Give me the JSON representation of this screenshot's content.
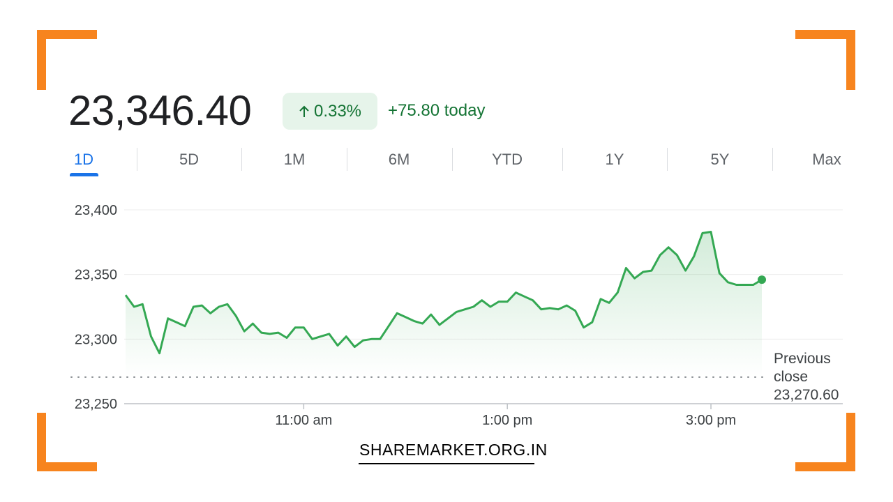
{
  "header": {
    "price": "23,346.40",
    "change_percent": "0.33%",
    "change_today": "+75.80 today"
  },
  "tabs": [
    {
      "label": "1D",
      "active": true
    },
    {
      "label": "5D",
      "active": false
    },
    {
      "label": "1M",
      "active": false
    },
    {
      "label": "6M",
      "active": false
    },
    {
      "label": "YTD",
      "active": false
    },
    {
      "label": "1Y",
      "active": false
    },
    {
      "label": "5Y",
      "active": false
    },
    {
      "label": "Max",
      "active": false
    }
  ],
  "previous_close": {
    "line1": "Previous",
    "line2": "close",
    "value": "23,270.60"
  },
  "brand": "SHAREMARKET.ORG.IN",
  "colors": {
    "accent": "#1a73e8",
    "positive": "#137333",
    "line": "#34a853",
    "corner": "#f7841e"
  },
  "chart_data": {
    "type": "line",
    "title": "",
    "xlabel": "",
    "ylabel": "",
    "ylim": [
      23250,
      23400
    ],
    "y_ticks": [
      23400,
      23350,
      23300,
      23250
    ],
    "y_tick_labels": [
      "23,400",
      "23,350",
      "23,300",
      "23,250"
    ],
    "x_ticks": [
      120,
      240,
      360
    ],
    "x_tick_labels": [
      "11:00 am",
      "1:00 pm",
      "3:00 pm"
    ],
    "x_range": [
      15,
      390
    ],
    "previous_close": 23270.6,
    "grid": true,
    "series": [
      {
        "values": [
          [
            15,
            23334
          ],
          [
            20,
            23325
          ],
          [
            25,
            23327
          ],
          [
            30,
            23302
          ],
          [
            35,
            23289
          ],
          [
            40,
            23316
          ],
          [
            45,
            23313
          ],
          [
            50,
            23310
          ],
          [
            55,
            23325
          ],
          [
            60,
            23326
          ],
          [
            65,
            23320
          ],
          [
            70,
            23325
          ],
          [
            75,
            23327
          ],
          [
            80,
            23318
          ],
          [
            85,
            23306
          ],
          [
            90,
            23312
          ],
          [
            95,
            23305
          ],
          [
            100,
            23304
          ],
          [
            105,
            23305
          ],
          [
            110,
            23301
          ],
          [
            115,
            23309
          ],
          [
            120,
            23309
          ],
          [
            125,
            23300
          ],
          [
            130,
            23302
          ],
          [
            135,
            23304
          ],
          [
            140,
            23295
          ],
          [
            145,
            23302
          ],
          [
            150,
            23294
          ],
          [
            155,
            23299
          ],
          [
            160,
            23300
          ],
          [
            165,
            23300
          ],
          [
            170,
            23310
          ],
          [
            175,
            23320
          ],
          [
            180,
            23317
          ],
          [
            185,
            23314
          ],
          [
            190,
            23312
          ],
          [
            195,
            23319
          ],
          [
            200,
            23311
          ],
          [
            205,
            23316
          ],
          [
            210,
            23321
          ],
          [
            215,
            23323
          ],
          [
            220,
            23325
          ],
          [
            225,
            23330
          ],
          [
            230,
            23325
          ],
          [
            235,
            23329
          ],
          [
            240,
            23329
          ],
          [
            245,
            23336
          ],
          [
            250,
            23333
          ],
          [
            255,
            23330
          ],
          [
            260,
            23323
          ],
          [
            265,
            23324
          ],
          [
            270,
            23323
          ],
          [
            275,
            23326
          ],
          [
            280,
            23322
          ],
          [
            285,
            23309
          ],
          [
            290,
            23313
          ],
          [
            295,
            23331
          ],
          [
            300,
            23328
          ],
          [
            305,
            23336
          ],
          [
            310,
            23355
          ],
          [
            315,
            23347
          ],
          [
            320,
            23352
          ],
          [
            325,
            23353
          ],
          [
            330,
            23365
          ],
          [
            335,
            23371
          ],
          [
            340,
            23365
          ],
          [
            345,
            23353
          ],
          [
            350,
            23364
          ],
          [
            355,
            23382
          ],
          [
            360,
            23383
          ],
          [
            365,
            23351
          ],
          [
            370,
            23344
          ],
          [
            375,
            23342
          ],
          [
            380,
            23342
          ],
          [
            385,
            23342
          ],
          [
            390,
            23346
          ]
        ]
      }
    ]
  }
}
